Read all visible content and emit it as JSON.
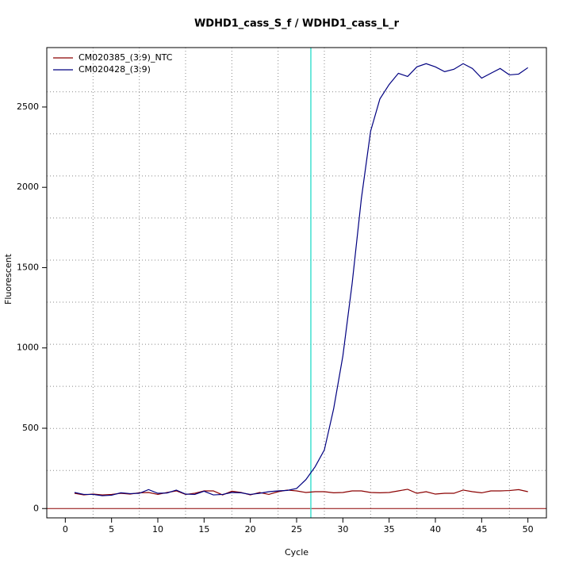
{
  "chart_data": {
    "type": "line",
    "title": "WDHD1_cass_S_f / WDHD1_cass_L_r",
    "x_label": "Cycle",
    "y_label": "Fluorescent",
    "x": [
      1,
      2,
      3,
      4,
      5,
      6,
      7,
      8,
      9,
      10,
      11,
      12,
      13,
      14,
      15,
      16,
      17,
      18,
      19,
      20,
      21,
      22,
      23,
      24,
      25,
      26,
      27,
      28,
      29,
      30,
      31,
      32,
      33,
      34,
      35,
      36,
      37,
      38,
      39,
      40,
      41,
      42,
      43,
      44,
      45,
      46,
      47,
      48,
      49,
      50
    ],
    "series": [
      {
        "name": "CM020385_(3:9)_NTC",
        "color": "#8b0000",
        "values": [
          95,
          85,
          90,
          85,
          88,
          95,
          90,
          98,
          100,
          88,
          100,
          110,
          88,
          95,
          110,
          110,
          85,
          108,
          100,
          85,
          100,
          88,
          105,
          115,
          110,
          100,
          105,
          105,
          98,
          100,
          110,
          110,
          100,
          98,
          100,
          110,
          120,
          95,
          105,
          90,
          95,
          95,
          115,
          105,
          98,
          110,
          110,
          112,
          118,
          105
        ]
      },
      {
        "name": "CM020428_(3:9)",
        "color": "#000080",
        "values": [
          100,
          88,
          88,
          80,
          83,
          98,
          93,
          95,
          118,
          95,
          97,
          115,
          90,
          88,
          108,
          85,
          88,
          100,
          98,
          88,
          95,
          105,
          110,
          113,
          125,
          180,
          260,
          365,
          620,
          950,
          1400,
          1930,
          2350,
          2550,
          2640,
          2710,
          2690,
          2750,
          2770,
          2750,
          2720,
          2735,
          2770,
          2740,
          2680,
          2710,
          2740,
          2700,
          2705,
          2745
        ]
      }
    ],
    "xlim": [
      -2,
      52
    ],
    "ylim": [
      -58,
      2870
    ],
    "xticks": [
      0,
      5,
      10,
      15,
      20,
      25,
      30,
      35,
      40,
      45,
      50
    ],
    "yticks": [
      0,
      500,
      1000,
      1500,
      2000,
      2500
    ],
    "xgrid": [
      3,
      8,
      13,
      18,
      23,
      28,
      33,
      38,
      43,
      48
    ],
    "ygrid": [
      237,
      499,
      761,
      1023,
      1285,
      1547,
      1809,
      2071,
      2333,
      2595
    ],
    "vline": {
      "x": 26.54,
      "color": "#40e0d0"
    },
    "hline": {
      "y": 0,
      "color": "#8b0000"
    },
    "legend": "top-left"
  }
}
